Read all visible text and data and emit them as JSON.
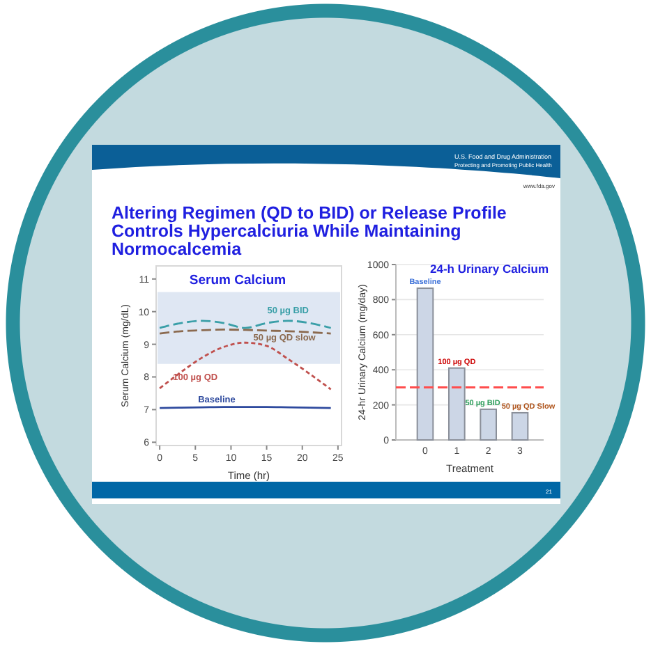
{
  "chart_data": [
    {
      "type": "line",
      "title": "Serum Calcium",
      "xlabel": "Time (hr)",
      "ylabel": "Serum Calcium (mg/dL)",
      "annotations": [
        "Altering Regimen (QD to BID) or Release Profile Controls Hypercalciuria While Maintaining Normocalcemia",
        "U.S. Food and Drug Administration",
        "Protecting and Promoting Public Health",
        "www.fda.gov",
        "21"
      ],
      "x": [
        0,
        3,
        6,
        9,
        12,
        15,
        18,
        21,
        24
      ],
      "series": [
        {
          "name": "50 µg BID",
          "color": "#3a9fa8",
          "line_style": "dashed",
          "values": [
            9.5,
            9.65,
            9.72,
            9.65,
            9.5,
            9.65,
            9.72,
            9.65,
            9.5
          ]
        },
        {
          "name": "50 µg QD slow",
          "color": "#8b6a4f",
          "line_style": "dashed",
          "values": [
            9.33,
            9.4,
            9.43,
            9.45,
            9.44,
            9.42,
            9.4,
            9.37,
            9.33
          ]
        },
        {
          "name": "100 µg QD",
          "color": "#c0504d",
          "line_style": "dotted",
          "values": [
            7.65,
            8.15,
            8.6,
            8.92,
            9.05,
            8.95,
            8.55,
            8.1,
            7.62
          ]
        },
        {
          "name": "Baseline",
          "color": "#2e4a9e",
          "line_style": "solid",
          "values": [
            7.05,
            7.06,
            7.07,
            7.08,
            7.08,
            7.08,
            7.07,
            7.06,
            7.05
          ]
        }
      ],
      "bands": [
        {
          "axis": "y",
          "from": 8.4,
          "to": 10.6,
          "color": "#dfe7f3"
        }
      ],
      "xlim": [
        -0.5,
        25.5
      ],
      "ylim": [
        5.9,
        11.4
      ],
      "xticks": [
        0,
        5,
        10,
        15,
        20,
        25
      ],
      "yticks": [
        6,
        7,
        8,
        9,
        10,
        11
      ],
      "grid": false
    },
    {
      "type": "bar",
      "title": "24-h Urinary Calcium",
      "xlabel": "Treatment",
      "ylabel": "24-hr Urinary Calcium (mg/day)",
      "categories": [
        "0",
        "1",
        "2",
        "3"
      ],
      "values": [
        865,
        410,
        175,
        155
      ],
      "color": "#ccd6e6",
      "annotations": [
        {
          "text": "Baseline",
          "x": "0",
          "y": 865
        },
        {
          "text": "100 µg QD",
          "x": "1",
          "y": 410
        },
        {
          "text": "50 µg BID",
          "x": "2",
          "y": 175
        },
        {
          "text": "50 µg QD Slow",
          "x": "3",
          "y": 155
        }
      ],
      "ref_lines": [
        {
          "axis": "y",
          "value": 300,
          "color": "#ff4d4d",
          "line_style": "dashed"
        }
      ],
      "ylim": [
        0,
        1000
      ],
      "yticks": [
        0,
        200,
        400,
        600,
        800,
        1000
      ],
      "grid": "y"
    }
  ]
}
